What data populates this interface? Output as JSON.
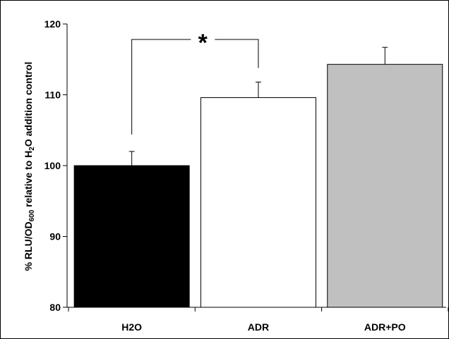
{
  "chart_data": {
    "type": "bar",
    "title": "",
    "xlabel": "",
    "ylabel_parts": [
      "% RLU/OD",
      "600",
      " relative to H",
      "2",
      "O addition control"
    ],
    "categories": [
      "H2O",
      "ADR",
      "ADR+PO"
    ],
    "values": [
      100,
      109.6,
      114.3
    ],
    "errors": [
      2.0,
      2.2,
      2.4
    ],
    "ylim": [
      80,
      120
    ],
    "yticks": [
      80,
      90,
      100,
      110,
      120
    ],
    "bar_colors": [
      "#000000",
      "#ffffff",
      "#c0c0c0"
    ],
    "grid": false,
    "legend": "none",
    "significance": {
      "from": 0,
      "to": 1,
      "label": "*"
    }
  }
}
